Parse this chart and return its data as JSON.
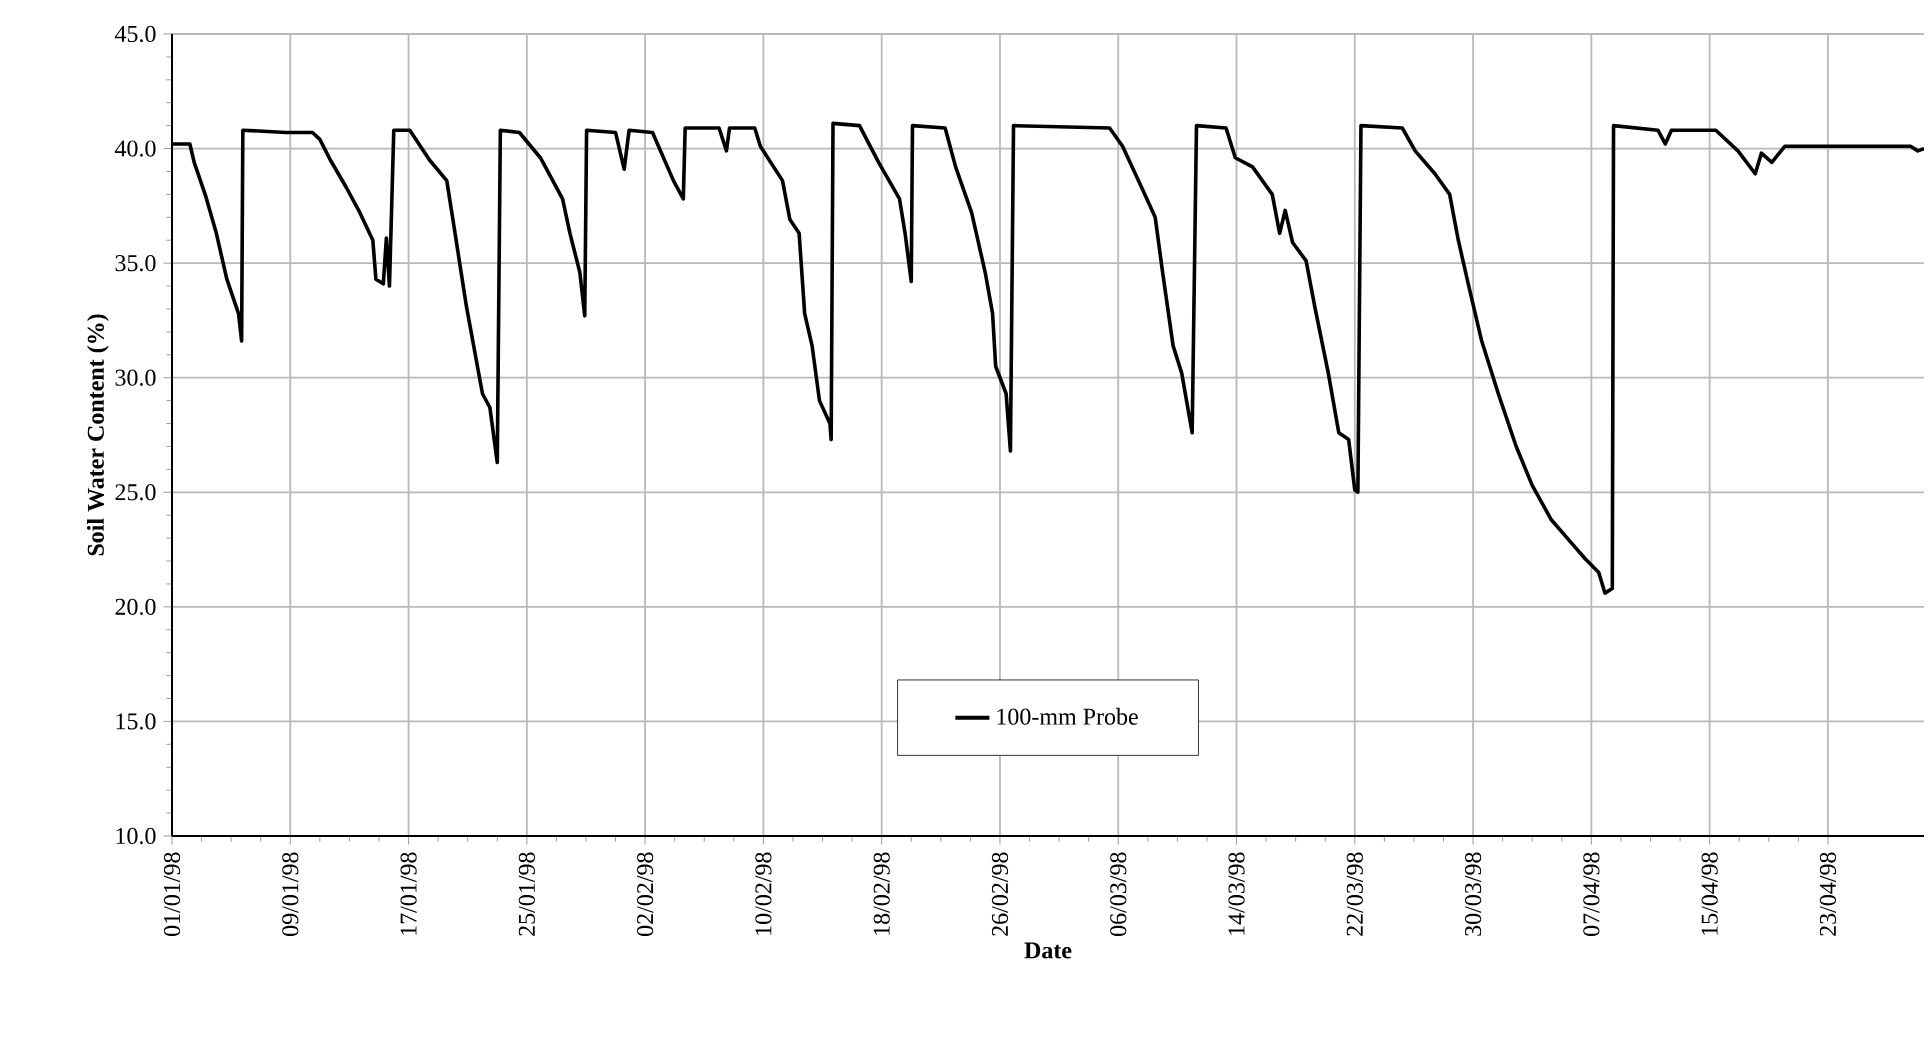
{
  "chart_data": {
    "type": "line",
    "xlabel": "Date",
    "ylabel": "Soil Water Content (%)",
    "xlim": [
      "1998-01-01",
      "1998-04-29T12:00"
    ],
    "ylim": [
      10,
      45
    ],
    "xticks": [
      {
        "value": "1998-01-01",
        "label": "01/01/98"
      },
      {
        "value": "1998-01-09",
        "label": "09/01/98"
      },
      {
        "value": "1998-01-17",
        "label": "17/01/98"
      },
      {
        "value": "1998-01-25",
        "label": "25/01/98"
      },
      {
        "value": "1998-02-02",
        "label": "02/02/98"
      },
      {
        "value": "1998-02-10",
        "label": "10/02/98"
      },
      {
        "value": "1998-02-18",
        "label": "18/02/98"
      },
      {
        "value": "1998-02-26",
        "label": "26/02/98"
      },
      {
        "value": "1998-03-06",
        "label": "06/03/98"
      },
      {
        "value": "1998-03-14",
        "label": "14/03/98"
      },
      {
        "value": "1998-03-22",
        "label": "22/03/98"
      },
      {
        "value": "1998-03-30",
        "label": "30/03/98"
      },
      {
        "value": "1998-04-07",
        "label": "07/04/98"
      },
      {
        "value": "1998-04-15",
        "label": "15/04/98"
      },
      {
        "value": "1998-04-23",
        "label": "23/04/98"
      }
    ],
    "yticks": [
      {
        "value": 10,
        "label": "10.0"
      },
      {
        "value": 15,
        "label": "15.0"
      },
      {
        "value": 20,
        "label": "20.0"
      },
      {
        "value": 25,
        "label": "25.0"
      },
      {
        "value": 30,
        "label": "30.0"
      },
      {
        "value": 35,
        "label": "35.0"
      },
      {
        "value": 40,
        "label": "40.0"
      },
      {
        "value": 45,
        "label": "45.0"
      }
    ],
    "grid": true,
    "legend": "bottom",
    "marker": "none",
    "line_style": "solid",
    "series": [
      {
        "name": "100-mm Probe",
        "color": "#000000",
        "x": [
          "1998-01-01T00:00",
          "1998-01-02T05:00",
          "1998-01-02T12:00",
          "1998-01-03T07:00",
          "1998-01-04T00:00",
          "1998-01-04T17:00",
          "1998-01-05T12:00",
          "1998-01-05T17:00",
          "1998-01-05T19:00",
          "1998-01-08T17:00",
          "1998-01-10T12:00",
          "1998-01-11T00:00",
          "1998-01-11T17:00",
          "1998-01-12T19:00",
          "1998-01-13T17:00",
          "1998-01-14T14:00",
          "1998-01-14T19:00",
          "1998-01-15T07:00",
          "1998-01-15T12:00",
          "1998-01-15T17:00",
          "1998-01-16T00:00",
          "1998-01-17T02:00",
          "1998-01-18T10:00",
          "1998-01-19T14:00",
          "1998-01-20T00:00",
          "1998-01-20T22:00",
          "1998-01-22T00:00",
          "1998-01-22T12:00",
          "1998-01-23T00:00",
          "1998-01-23T05:00",
          "1998-01-24T12:00",
          "1998-01-25T22:00",
          "1998-01-27T10:00",
          "1998-01-27T22:00",
          "1998-01-28T14:00",
          "1998-01-28T22:00",
          "1998-01-29T01:00",
          "1998-01-31T00:00",
          "1998-01-31T14:00",
          "1998-01-31T22:00",
          "1998-02-02T12:00",
          "1998-02-03T22:00",
          "1998-02-04T14:00",
          "1998-02-04T17:00",
          "1998-02-07T00:00",
          "1998-02-07T12:00",
          "1998-02-07T17:00",
          "1998-02-09T10:00",
          "1998-02-09T19:00",
          "1998-02-11T07:00",
          "1998-02-11T19:00",
          "1998-02-12T10:00",
          "1998-02-12T19:00",
          "1998-02-13T07:00",
          "1998-02-13T19:00",
          "1998-02-14T12:00",
          "1998-02-14T14:00",
          "1998-02-14T17:00",
          "1998-02-16T12:00",
          "1998-02-17T19:00",
          "1998-02-19T05:00",
          "1998-02-19T14:00",
          "1998-02-20T00:00",
          "1998-02-20T02:00",
          "1998-02-22T07:00",
          "1998-02-23T00:00",
          "1998-02-24T02:00",
          "1998-02-25T00:00",
          "1998-02-25T12:00",
          "1998-02-25T17:00",
          "1998-02-26T10:00",
          "1998-02-26T17:00",
          "1998-02-26T22:00",
          "1998-03-05T10:00",
          "1998-03-06T07:00",
          "1998-03-07T14:00",
          "1998-03-08T12:00",
          "1998-03-09T00:00",
          "1998-03-09T17:00",
          "1998-03-10T07:00",
          "1998-03-11T00:00",
          "1998-03-11T07:00",
          "1998-03-13T07:00",
          "1998-03-13T22:00",
          "1998-03-15T02:00",
          "1998-03-16T10:00",
          "1998-03-16T22:00",
          "1998-03-17T07:00",
          "1998-03-17T19:00",
          "1998-03-18T17:00",
          "1998-03-19T07:00",
          "1998-03-20T05:00",
          "1998-03-20T22:00",
          "1998-03-21T14:00",
          "1998-03-22T00:00",
          "1998-03-22T05:00",
          "1998-03-22T10:00",
          "1998-03-25T05:00",
          "1998-03-26T02:00",
          "1998-03-27T10:00",
          "1998-03-28T10:00",
          "1998-03-29T00:00",
          "1998-03-29T17:00",
          "1998-03-30T14:00",
          "1998-03-31T17:00",
          "1998-04-01T22:00",
          "1998-04-03T00:00",
          "1998-04-04T07:00",
          "1998-04-05T12:00",
          "1998-04-06T14:00",
          "1998-04-07T12:00",
          "1998-04-07T22:00",
          "1998-04-08T10:00",
          "1998-04-08T12:00",
          "1998-04-11T12:00",
          "1998-04-12T00:00",
          "1998-04-12T10:00",
          "1998-04-15T10:00",
          "1998-04-16T22:00",
          "1998-04-18T02:00",
          "1998-04-18T12:00",
          "1998-04-19T05:00",
          "1998-04-20T02:00",
          "1998-04-28T14:00",
          "1998-04-29T02:00",
          "1998-04-29T12:00"
        ],
        "values": [
          40.2,
          40.2,
          39.4,
          37.9,
          36.3,
          34.3,
          32.8,
          31.6,
          40.8,
          40.7,
          40.7,
          40.4,
          39.5,
          38.3,
          37.2,
          36.0,
          34.3,
          34.1,
          36.1,
          34.0,
          40.8,
          40.8,
          39.5,
          38.6,
          36.9,
          33.1,
          29.3,
          28.7,
          26.3,
          40.8,
          40.7,
          39.6,
          37.8,
          36.3,
          34.6,
          32.7,
          40.8,
          40.7,
          39.1,
          40.8,
          40.7,
          38.6,
          37.8,
          40.9,
          40.9,
          39.9,
          40.9,
          40.9,
          40.1,
          38.6,
          36.9,
          36.3,
          32.8,
          31.4,
          29.0,
          28.0,
          27.3,
          41.1,
          41.0,
          39.4,
          37.8,
          36.3,
          34.2,
          41.0,
          40.9,
          39.2,
          37.2,
          34.6,
          32.8,
          30.5,
          29.3,
          26.8,
          41.0,
          40.9,
          40.1,
          38.3,
          37.0,
          34.6,
          31.4,
          30.2,
          27.6,
          41.0,
          40.9,
          39.6,
          39.2,
          38.0,
          36.3,
          37.3,
          35.9,
          35.1,
          33.1,
          30.2,
          27.6,
          27.3,
          25.1,
          25.0,
          41.0,
          40.9,
          39.9,
          38.9,
          38.0,
          36.0,
          34.0,
          31.6,
          29.3,
          27.0,
          25.3,
          23.8,
          22.9,
          22.1,
          21.5,
          20.6,
          20.8,
          41.0,
          40.8,
          40.2,
          40.8,
          40.8,
          39.9,
          38.9,
          39.8,
          39.4,
          40.1,
          40.1,
          39.9,
          40.0
        ]
      }
    ]
  }
}
